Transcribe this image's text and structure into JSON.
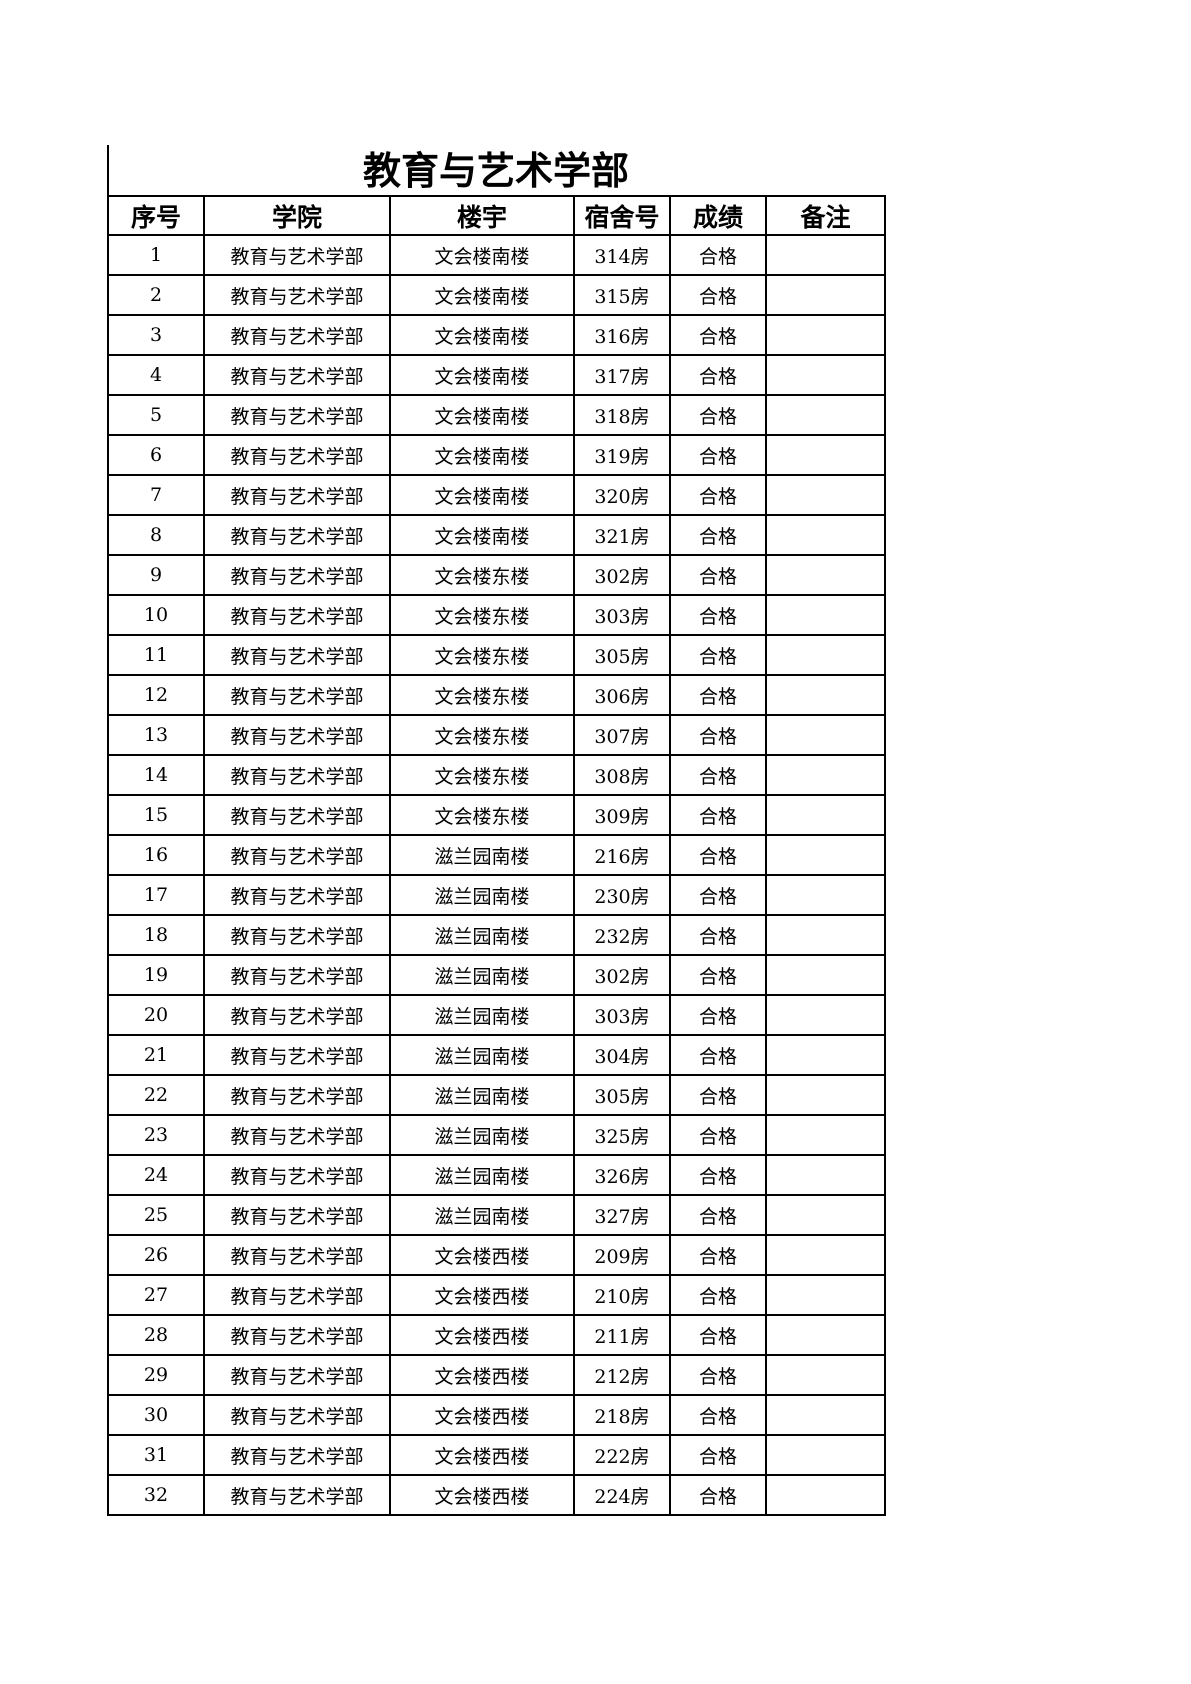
{
  "title": "教育与艺术学部",
  "headers": [
    "序号",
    "学院",
    "楼宇",
    "宿舍号",
    "成绩",
    "备注"
  ],
  "rows": [
    [
      "1",
      "教育与艺术学部",
      "文会楼南楼",
      "314房",
      "合格",
      ""
    ],
    [
      "2",
      "教育与艺术学部",
      "文会楼南楼",
      "315房",
      "合格",
      ""
    ],
    [
      "3",
      "教育与艺术学部",
      "文会楼南楼",
      "316房",
      "合格",
      ""
    ],
    [
      "4",
      "教育与艺术学部",
      "文会楼南楼",
      "317房",
      "合格",
      ""
    ],
    [
      "5",
      "教育与艺术学部",
      "文会楼南楼",
      "318房",
      "合格",
      ""
    ],
    [
      "6",
      "教育与艺术学部",
      "文会楼南楼",
      "319房",
      "合格",
      ""
    ],
    [
      "7",
      "教育与艺术学部",
      "文会楼南楼",
      "320房",
      "合格",
      ""
    ],
    [
      "8",
      "教育与艺术学部",
      "文会楼南楼",
      "321房",
      "合格",
      ""
    ],
    [
      "9",
      "教育与艺术学部",
      "文会楼东楼",
      "302房",
      "合格",
      ""
    ],
    [
      "10",
      "教育与艺术学部",
      "文会楼东楼",
      "303房",
      "合格",
      ""
    ],
    [
      "11",
      "教育与艺术学部",
      "文会楼东楼",
      "305房",
      "合格",
      ""
    ],
    [
      "12",
      "教育与艺术学部",
      "文会楼东楼",
      "306房",
      "合格",
      ""
    ],
    [
      "13",
      "教育与艺术学部",
      "文会楼东楼",
      "307房",
      "合格",
      ""
    ],
    [
      "14",
      "教育与艺术学部",
      "文会楼东楼",
      "308房",
      "合格",
      ""
    ],
    [
      "15",
      "教育与艺术学部",
      "文会楼东楼",
      "309房",
      "合格",
      ""
    ],
    [
      "16",
      "教育与艺术学部",
      "滋兰园南楼",
      "216房",
      "合格",
      ""
    ],
    [
      "17",
      "教育与艺术学部",
      "滋兰园南楼",
      "230房",
      "合格",
      ""
    ],
    [
      "18",
      "教育与艺术学部",
      "滋兰园南楼",
      "232房",
      "合格",
      ""
    ],
    [
      "19",
      "教育与艺术学部",
      "滋兰园南楼",
      "302房",
      "合格",
      ""
    ],
    [
      "20",
      "教育与艺术学部",
      "滋兰园南楼",
      "303房",
      "合格",
      ""
    ],
    [
      "21",
      "教育与艺术学部",
      "滋兰园南楼",
      "304房",
      "合格",
      ""
    ],
    [
      "22",
      "教育与艺术学部",
      "滋兰园南楼",
      "305房",
      "合格",
      ""
    ],
    [
      "23",
      "教育与艺术学部",
      "滋兰园南楼",
      "325房",
      "合格",
      ""
    ],
    [
      "24",
      "教育与艺术学部",
      "滋兰园南楼",
      "326房",
      "合格",
      ""
    ],
    [
      "25",
      "教育与艺术学部",
      "滋兰园南楼",
      "327房",
      "合格",
      ""
    ],
    [
      "26",
      "教育与艺术学部",
      "文会楼西楼",
      "209房",
      "合格",
      ""
    ],
    [
      "27",
      "教育与艺术学部",
      "文会楼西楼",
      "210房",
      "合格",
      ""
    ],
    [
      "28",
      "教育与艺术学部",
      "文会楼西楼",
      "211房",
      "合格",
      ""
    ],
    [
      "29",
      "教育与艺术学部",
      "文会楼西楼",
      "212房",
      "合格",
      ""
    ],
    [
      "30",
      "教育与艺术学部",
      "文会楼西楼",
      "218房",
      "合格",
      ""
    ],
    [
      "31",
      "教育与艺术学部",
      "文会楼西楼",
      "222房",
      "合格",
      ""
    ],
    [
      "32",
      "教育与艺术学部",
      "文会楼西楼",
      "224房",
      "合格",
      ""
    ]
  ]
}
